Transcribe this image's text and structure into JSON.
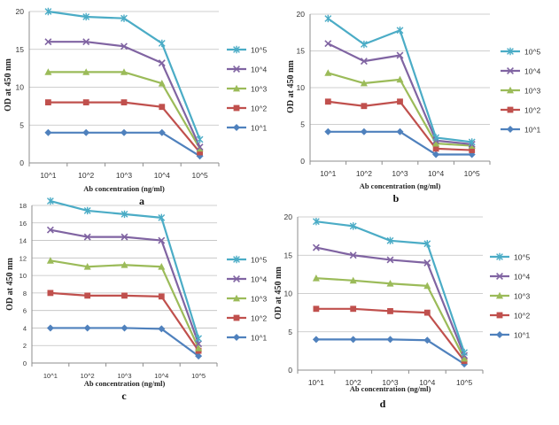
{
  "chart_data": [
    {
      "panel_label": "a",
      "type": "line",
      "xlabel": "Ab concentration (ng/ml)",
      "ylabel": "OD at 450 nm",
      "categories": [
        "10^1",
        "10^2",
        "10^3",
        "10^4",
        "10^5"
      ],
      "ylim": [
        0,
        20
      ],
      "yticks": [
        "0",
        "5",
        "10",
        "15",
        "20"
      ],
      "grid": true,
      "legend": "right",
      "series": [
        {
          "name": "10^5",
          "color": "#4bacc6",
          "marker": "asterisk",
          "values": [
            20,
            19.3,
            19.1,
            15.8,
            3.1
          ]
        },
        {
          "name": "10^4",
          "color": "#8064a2",
          "marker": "x",
          "values": [
            16,
            16,
            15.4,
            13.2,
            2.1
          ]
        },
        {
          "name": "10^3",
          "color": "#9bbb59",
          "marker": "triangle",
          "values": [
            12,
            12,
            12,
            10.5,
            1.9
          ]
        },
        {
          "name": "10^2",
          "color": "#c0504d",
          "marker": "square",
          "values": [
            8,
            8,
            8,
            7.4,
            1.4
          ]
        },
        {
          "name": "10^1",
          "color": "#4f81bd",
          "marker": "diamond",
          "values": [
            4,
            4,
            4,
            4,
            0.9
          ]
        }
      ]
    },
    {
      "panel_label": "b",
      "type": "line",
      "xlabel": "Ab concentration (ng/ml)",
      "ylabel": "OD at 450 nm",
      "categories": [
        "10^1",
        "10^2",
        "10^3",
        "10^4",
        "10^5"
      ],
      "ylim": [
        0,
        20
      ],
      "yticks": [
        "0",
        "5",
        "10",
        "15",
        "20"
      ],
      "grid": true,
      "legend": "right",
      "series": [
        {
          "name": "10^5",
          "color": "#4bacc6",
          "marker": "asterisk",
          "values": [
            19.4,
            15.9,
            17.8,
            3.2,
            2.6
          ]
        },
        {
          "name": "10^4",
          "color": "#8064a2",
          "marker": "x",
          "values": [
            16,
            13.6,
            14.4,
            2.8,
            2.3
          ]
        },
        {
          "name": "10^3",
          "color": "#9bbb59",
          "marker": "triangle",
          "values": [
            12,
            10.6,
            11.1,
            2.4,
            2.1
          ]
        },
        {
          "name": "10^2",
          "color": "#c0504d",
          "marker": "square",
          "values": [
            8.1,
            7.5,
            8.1,
            1.7,
            1.5
          ]
        },
        {
          "name": "10^1",
          "color": "#4f81bd",
          "marker": "diamond",
          "values": [
            4,
            4,
            4,
            0.9,
            0.9
          ]
        }
      ]
    },
    {
      "panel_label": "c",
      "type": "line",
      "xlabel": "Ab concentration (ng/ml)",
      "ylabel": "OD at 450 nm",
      "categories": [
        "10^1",
        "10^2",
        "10^3",
        "10^4",
        "10^5"
      ],
      "ylim": [
        0,
        18
      ],
      "yticks": [
        "0",
        "2",
        "4",
        "6",
        "8",
        "10",
        "12",
        "14",
        "16",
        "18"
      ],
      "grid": true,
      "legend": "right",
      "series": [
        {
          "name": "10^5",
          "color": "#4bacc6",
          "marker": "asterisk",
          "values": [
            18.5,
            17.4,
            17,
            16.6,
            2.8
          ]
        },
        {
          "name": "10^4",
          "color": "#8064a2",
          "marker": "x",
          "values": [
            15.2,
            14.4,
            14.4,
            14,
            2.2
          ]
        },
        {
          "name": "10^3",
          "color": "#9bbb59",
          "marker": "triangle",
          "values": [
            11.7,
            11,
            11.2,
            11,
            1.7
          ]
        },
        {
          "name": "10^2",
          "color": "#c0504d",
          "marker": "square",
          "values": [
            8,
            7.7,
            7.7,
            7.6,
            1.4
          ]
        },
        {
          "name": "10^1",
          "color": "#4f81bd",
          "marker": "diamond",
          "values": [
            4,
            4,
            4,
            3.9,
            0.8
          ]
        }
      ]
    },
    {
      "panel_label": "d",
      "type": "line",
      "xlabel": "Ab concentration (ng/ml)",
      "ylabel": "OD at 450 nm",
      "categories": [
        "10^1",
        "10^2",
        "10^3",
        "10^4",
        "10^5"
      ],
      "ylim": [
        0,
        20
      ],
      "yticks": [
        "0",
        "5",
        "10",
        "15",
        "20"
      ],
      "grid": true,
      "legend": "right",
      "series": [
        {
          "name": "10^5",
          "color": "#4bacc6",
          "marker": "asterisk",
          "values": [
            19.4,
            18.8,
            16.9,
            16.5,
            2.3
          ]
        },
        {
          "name": "10^4",
          "color": "#8064a2",
          "marker": "x",
          "values": [
            16,
            15,
            14.4,
            14,
            1.9
          ]
        },
        {
          "name": "10^3",
          "color": "#9bbb59",
          "marker": "triangle",
          "values": [
            12,
            11.7,
            11.3,
            11,
            1.5
          ]
        },
        {
          "name": "10^2",
          "color": "#c0504d",
          "marker": "square",
          "values": [
            8,
            8,
            7.7,
            7.5,
            1.2
          ]
        },
        {
          "name": "10^1",
          "color": "#4f81bd",
          "marker": "diamond",
          "values": [
            4,
            4,
            4,
            3.9,
            0.8
          ]
        }
      ]
    }
  ]
}
